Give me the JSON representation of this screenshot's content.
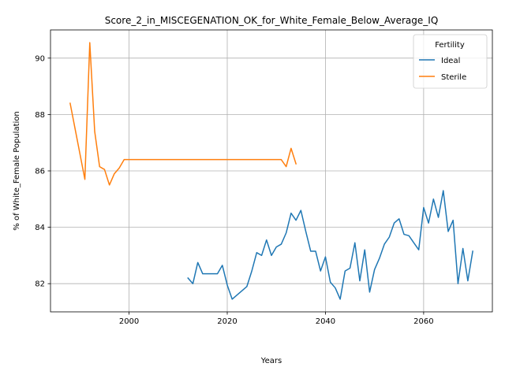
{
  "chart_data": {
    "type": "line",
    "title": "Score_2_in_MISCEGENATION_OK_for_White_Female_Below_Average_IQ",
    "xlabel": "Years",
    "ylabel": "% of White_Female Population",
    "xlim": [
      1984,
      2074
    ],
    "ylim": [
      81.0,
      91.0
    ],
    "xticks": [
      2000,
      2020,
      2040,
      2060
    ],
    "yticks": [
      82,
      84,
      86,
      88,
      90
    ],
    "grid": true,
    "legend": {
      "title": "Fertility",
      "placement": "top-right"
    },
    "series": [
      {
        "name": "Ideal",
        "color": "#1f77b4",
        "x": [
          2012,
          2013,
          2014,
          2015,
          2016,
          2017,
          2018,
          2019,
          2020,
          2021,
          2022,
          2023,
          2024,
          2025,
          2026,
          2027,
          2028,
          2029,
          2030,
          2031,
          2032,
          2033,
          2034,
          2035,
          2036,
          2037,
          2038,
          2039,
          2040,
          2041,
          2042,
          2043,
          2044,
          2045,
          2046,
          2047,
          2048,
          2049,
          2050,
          2051,
          2052,
          2053,
          2054,
          2055,
          2056,
          2057,
          2058,
          2059,
          2060,
          2061,
          2062,
          2063,
          2064,
          2065,
          2066,
          2067,
          2068,
          2069,
          2070
        ],
        "y": [
          82.2,
          82.0,
          82.75,
          82.35,
          82.35,
          82.35,
          82.35,
          82.65,
          81.95,
          81.45,
          81.6,
          81.75,
          81.9,
          82.45,
          83.1,
          83.0,
          83.55,
          83.0,
          83.3,
          83.4,
          83.8,
          84.5,
          84.25,
          84.6,
          83.85,
          83.15,
          83.15,
          82.45,
          82.95,
          82.05,
          81.85,
          81.45,
          82.45,
          82.55,
          83.45,
          82.1,
          83.2,
          81.7,
          82.5,
          82.9,
          83.4,
          83.65,
          84.15,
          84.3,
          83.75,
          83.7,
          83.45,
          83.2,
          84.7,
          84.15,
          85.0,
          84.35,
          85.3,
          83.85,
          84.25,
          82.0,
          83.25,
          82.1,
          83.15
        ]
      },
      {
        "name": "Sterile",
        "color": "#ff7f0e",
        "x": [
          1988,
          1989,
          1990,
          1991,
          1992,
          1993,
          1994,
          1995,
          1996,
          1997,
          1998,
          1999,
          2000,
          2005,
          2010,
          2015,
          2020,
          2025,
          2030,
          2031,
          2032,
          2033,
          2034
        ],
        "y": [
          88.4,
          87.5,
          86.6,
          85.7,
          90.55,
          87.4,
          86.15,
          86.05,
          85.5,
          85.9,
          86.1,
          86.4,
          86.4,
          86.4,
          86.4,
          86.4,
          86.4,
          86.4,
          86.4,
          86.4,
          86.15,
          86.8,
          86.25
        ]
      }
    ]
  }
}
